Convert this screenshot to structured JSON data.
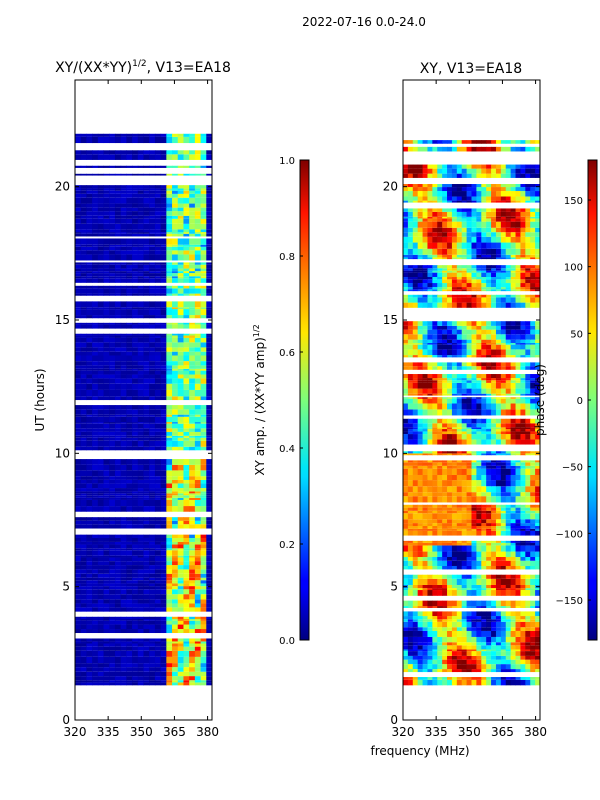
{
  "figure": {
    "suptitle": "2022-07-16 0.0-24.0",
    "xlabel_shared": "frequency (MHz)"
  },
  "chart_data": [
    {
      "type": "heatmap",
      "title": "XY/(XX*YY)",
      "title_superscript": "1/2",
      "title_suffix": ", V13=EA18",
      "xlabel": "",
      "ylabel": "UT (hours)",
      "xlim": [
        320,
        382
      ],
      "ylim": [
        0,
        24
      ],
      "xticks": [
        320,
        335,
        350,
        365,
        380
      ],
      "yticks": [
        0,
        5,
        10,
        15,
        20
      ],
      "data_extent_hours": [
        1.3,
        22.3
      ],
      "signal_band_mhz": [
        362,
        380
      ],
      "colorbar": {
        "label": "XY amp. / (XX*YY amp)",
        "label_superscript": "1/2",
        "range": [
          0.0,
          1.0
        ],
        "ticks": [
          "0.0",
          "0.2",
          "0.4",
          "0.6",
          "0.8",
          "1.0"
        ]
      }
    },
    {
      "type": "heatmap",
      "title": "XY, V13=EA18",
      "xlabel": "frequency (MHz)",
      "ylabel": "",
      "xlim": [
        320,
        382
      ],
      "ylim": [
        0,
        24
      ],
      "xticks": [
        320,
        335,
        350,
        365,
        380
      ],
      "yticks": [
        0,
        5,
        10,
        15,
        20
      ],
      "data_extent_hours": [
        1.3,
        22.3
      ],
      "colorbar": {
        "label": "phase (deg)",
        "range": [
          -180,
          180
        ],
        "ticks": [
          "−150",
          "−100",
          "−50",
          "0",
          "50",
          "100",
          "150"
        ]
      }
    }
  ]
}
